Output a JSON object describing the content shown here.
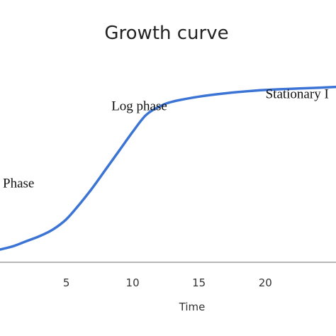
{
  "chart_data": {
    "type": "line",
    "title": "Growth curve",
    "xlabel": "Time",
    "ylabel": "",
    "xlim": [
      0,
      28
    ],
    "xticks": [
      5,
      10,
      15,
      20
    ],
    "grid": false,
    "annotations": [
      {
        "text": "Phase",
        "x": 1.4,
        "y": 0.37
      },
      {
        "text": "Log phase",
        "x": 10.5,
        "y": 0.83
      },
      {
        "text": "Stationary I",
        "x": 22.4,
        "y": 0.9
      }
    ],
    "series": [
      {
        "color": "#3b74d4",
        "points": [
          [
            0,
            0.0
          ],
          [
            1,
            0.02
          ],
          [
            2,
            0.05
          ],
          [
            3,
            0.08
          ],
          [
            4,
            0.12
          ],
          [
            5,
            0.18
          ],
          [
            6,
            0.27
          ],
          [
            7,
            0.37
          ],
          [
            8,
            0.48
          ],
          [
            9,
            0.59
          ],
          [
            10,
            0.7
          ],
          [
            11,
            0.8
          ],
          [
            12,
            0.85
          ],
          [
            13,
            0.88
          ],
          [
            15,
            0.91
          ],
          [
            17,
            0.93
          ],
          [
            20,
            0.95
          ],
          [
            23,
            0.96
          ],
          [
            26,
            0.97
          ],
          [
            28,
            0.98
          ]
        ]
      }
    ]
  }
}
